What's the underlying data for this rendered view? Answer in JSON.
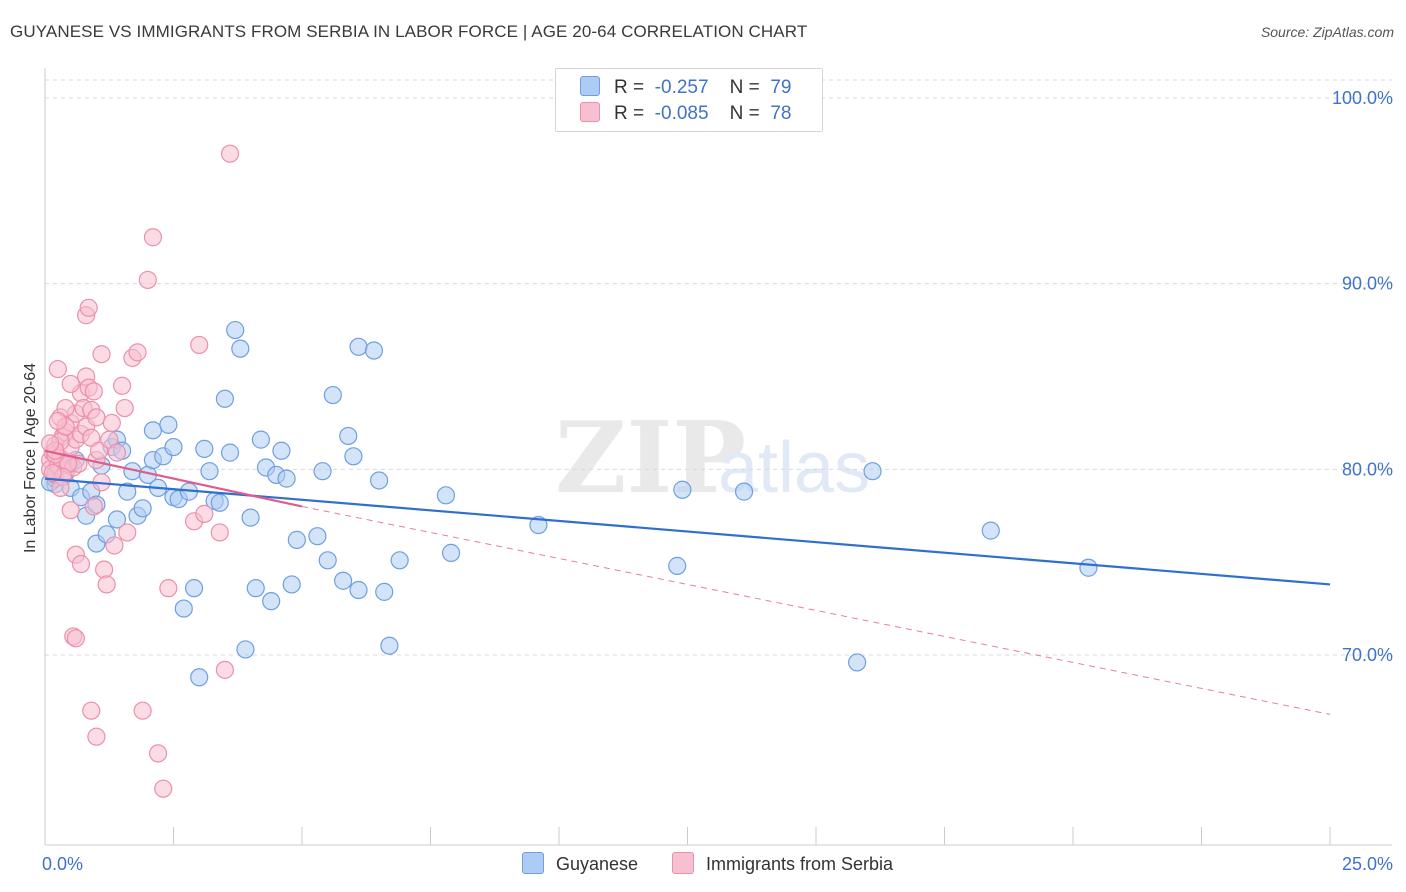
{
  "title": "GUYANESE VS IMMIGRANTS FROM SERBIA IN LABOR FORCE | AGE 20-64 CORRELATION CHART",
  "source": "Source: ZipAtlas.com",
  "watermark": {
    "zip": "ZIP",
    "atlas": "atlas"
  },
  "colors": {
    "blue_fill": "#aeccf3",
    "blue_stroke": "#6f9fe0",
    "blue_line": "#2f6fcf",
    "pink_fill": "#f8bfd0",
    "pink_stroke": "#ec8fab",
    "pink_line": "#e05c8a",
    "axis_text": "#3f73c9",
    "grid": "#d9d9d9"
  },
  "legend": {
    "r_label": "R =",
    "n_label": "N =",
    "rows": [
      {
        "r_value": "-0.257",
        "n_value": "79"
      },
      {
        "r_value": "-0.085",
        "n_value": "78"
      }
    ]
  },
  "bottom_legend": [
    "Guyanese",
    "Immigrants from Serbia"
  ],
  "chart_data": {
    "type": "scatter",
    "title": "GUYANESE VS IMMIGRANTS FROM SERBIA IN LABOR FORCE | AGE 20-64 CORRELATION CHART",
    "xlabel": "",
    "ylabel": "In Labor Force | Age 20-64",
    "xlim": [
      0,
      25
    ],
    "ylim": [
      60,
      102
    ],
    "y_ticks": [
      {
        "value": 70,
        "label": "70.0%"
      },
      {
        "value": 80,
        "label": "80.0%"
      },
      {
        "value": 90,
        "label": "90.0%"
      },
      {
        "value": 100,
        "label": "100.0%"
      }
    ],
    "x_tick_labels": [
      {
        "value": 0,
        "label": "0.0%"
      },
      {
        "value": 25,
        "label": "25.0%"
      }
    ],
    "x_minor_ticks": [
      2.5,
      5,
      7.5,
      10,
      12.5,
      15,
      17.5,
      20,
      22.5,
      25
    ],
    "grid": true,
    "series": [
      {
        "name": "Guyanese",
        "color": "blue",
        "R": -0.257,
        "N": 79,
        "trend": {
          "x": [
            0,
            25
          ],
          "y": [
            79.5,
            73.8
          ],
          "style": "solid"
        },
        "points": [
          [
            0.2,
            79.2
          ],
          [
            0.2,
            79.5
          ],
          [
            0.3,
            80.2
          ],
          [
            0.4,
            79.8
          ],
          [
            0.5,
            80.3
          ],
          [
            0.5,
            79.0
          ],
          [
            0.6,
            80.5
          ],
          [
            0.7,
            78.5
          ],
          [
            0.8,
            77.5
          ],
          [
            0.9,
            78.8
          ],
          [
            1.0,
            76.0
          ],
          [
            1.0,
            78.1
          ],
          [
            1.1,
            80.2
          ],
          [
            1.2,
            76.5
          ],
          [
            1.3,
            81.2
          ],
          [
            1.4,
            81.6
          ],
          [
            1.4,
            77.3
          ],
          [
            1.5,
            81.0
          ],
          [
            1.6,
            78.8
          ],
          [
            1.7,
            79.9
          ],
          [
            1.8,
            77.5
          ],
          [
            1.9,
            77.9
          ],
          [
            2.0,
            79.7
          ],
          [
            2.1,
            82.1
          ],
          [
            2.1,
            80.5
          ],
          [
            2.2,
            79.0
          ],
          [
            2.3,
            80.7
          ],
          [
            2.4,
            82.4
          ],
          [
            2.5,
            81.2
          ],
          [
            2.5,
            78.5
          ],
          [
            2.6,
            78.4
          ],
          [
            2.7,
            72.5
          ],
          [
            2.8,
            78.8
          ],
          [
            2.9,
            73.6
          ],
          [
            3.0,
            68.8
          ],
          [
            3.1,
            81.1
          ],
          [
            3.2,
            79.9
          ],
          [
            3.3,
            78.3
          ],
          [
            3.4,
            78.2
          ],
          [
            3.5,
            83.8
          ],
          [
            3.6,
            80.9
          ],
          [
            3.7,
            87.5
          ],
          [
            3.8,
            86.5
          ],
          [
            3.9,
            70.3
          ],
          [
            4.0,
            77.4
          ],
          [
            4.1,
            73.6
          ],
          [
            4.2,
            81.6
          ],
          [
            4.3,
            80.1
          ],
          [
            4.4,
            72.9
          ],
          [
            4.5,
            79.7
          ],
          [
            4.6,
            81.0
          ],
          [
            4.7,
            79.5
          ],
          [
            4.8,
            73.8
          ],
          [
            4.9,
            76.2
          ],
          [
            5.3,
            76.4
          ],
          [
            5.4,
            79.9
          ],
          [
            5.5,
            75.1
          ],
          [
            5.6,
            84.0
          ],
          [
            5.8,
            74.0
          ],
          [
            5.9,
            81.8
          ],
          [
            6.0,
            80.7
          ],
          [
            6.1,
            73.5
          ],
          [
            6.1,
            86.6
          ],
          [
            6.4,
            86.4
          ],
          [
            6.5,
            79.4
          ],
          [
            6.6,
            73.4
          ],
          [
            6.7,
            70.5
          ],
          [
            6.9,
            75.1
          ],
          [
            7.8,
            78.6
          ],
          [
            7.9,
            75.5
          ],
          [
            9.6,
            77.0
          ],
          [
            12.3,
            74.8
          ],
          [
            12.4,
            78.9
          ],
          [
            13.6,
            78.8
          ],
          [
            15.8,
            69.6
          ],
          [
            16.1,
            79.9
          ],
          [
            18.4,
            76.7
          ],
          [
            20.3,
            74.7
          ],
          [
            0.1,
            79.3
          ]
        ]
      },
      {
        "name": "Immigrants from Serbia",
        "color": "pink",
        "R": -0.085,
        "N": 78,
        "trend": {
          "x": [
            0,
            5
          ],
          "y": [
            81.0,
            78.0
          ],
          "style": "solid",
          "extended": {
            "x": [
              5,
              25
            ],
            "y": [
              78.0,
              66.8
            ],
            "style": "dashed"
          }
        },
        "points": [
          [
            0.1,
            80.5
          ],
          [
            0.1,
            80.0
          ],
          [
            0.15,
            80.9
          ],
          [
            0.2,
            81.3
          ],
          [
            0.2,
            79.7
          ],
          [
            0.25,
            80.2
          ],
          [
            0.3,
            82.8
          ],
          [
            0.3,
            80.6
          ],
          [
            0.35,
            81.8
          ],
          [
            0.4,
            82.0
          ],
          [
            0.4,
            79.9
          ],
          [
            0.45,
            80.4
          ],
          [
            0.5,
            82.5
          ],
          [
            0.5,
            81.2
          ],
          [
            0.55,
            80.1
          ],
          [
            0.6,
            83.0
          ],
          [
            0.6,
            81.6
          ],
          [
            0.65,
            80.3
          ],
          [
            0.7,
            84.1
          ],
          [
            0.7,
            81.9
          ],
          [
            0.75,
            83.3
          ],
          [
            0.8,
            85.0
          ],
          [
            0.8,
            82.3
          ],
          [
            0.85,
            84.4
          ],
          [
            0.9,
            83.2
          ],
          [
            0.9,
            81.7
          ],
          [
            0.95,
            84.2
          ],
          [
            1.0,
            82.8
          ],
          [
            1.0,
            80.5
          ],
          [
            1.05,
            81.0
          ],
          [
            1.1,
            79.3
          ],
          [
            1.1,
            86.2
          ],
          [
            1.15,
            74.6
          ],
          [
            1.2,
            73.8
          ],
          [
            1.25,
            81.6
          ],
          [
            1.3,
            82.5
          ],
          [
            1.35,
            75.9
          ],
          [
            1.4,
            80.9
          ],
          [
            1.5,
            84.5
          ],
          [
            1.55,
            83.3
          ],
          [
            1.6,
            76.6
          ],
          [
            1.7,
            86.0
          ],
          [
            1.8,
            86.3
          ],
          [
            1.9,
            67.0
          ],
          [
            2.0,
            90.2
          ],
          [
            2.1,
            92.5
          ],
          [
            2.2,
            64.7
          ],
          [
            2.3,
            62.8
          ],
          [
            2.4,
            73.6
          ],
          [
            2.9,
            77.2
          ],
          [
            3.0,
            86.7
          ],
          [
            3.1,
            77.6
          ],
          [
            3.4,
            76.6
          ],
          [
            3.5,
            69.2
          ],
          [
            3.6,
            97.0
          ],
          [
            0.45,
            80.3
          ],
          [
            0.35,
            79.6
          ],
          [
            0.25,
            85.4
          ],
          [
            0.55,
            71.0
          ],
          [
            0.6,
            70.9
          ],
          [
            0.9,
            67.0
          ],
          [
            1.0,
            65.6
          ],
          [
            0.8,
            88.3
          ],
          [
            0.85,
            88.7
          ],
          [
            0.95,
            78.0
          ],
          [
            0.5,
            77.8
          ],
          [
            0.6,
            75.4
          ],
          [
            0.7,
            74.9
          ],
          [
            0.2,
            80.8
          ],
          [
            0.3,
            81.5
          ],
          [
            0.4,
            82.3
          ],
          [
            0.3,
            79.0
          ],
          [
            0.4,
            83.3
          ],
          [
            0.5,
            84.6
          ],
          [
            0.2,
            81.0
          ],
          [
            0.1,
            81.4
          ],
          [
            0.15,
            79.8
          ],
          [
            0.25,
            82.6
          ]
        ]
      }
    ]
  }
}
